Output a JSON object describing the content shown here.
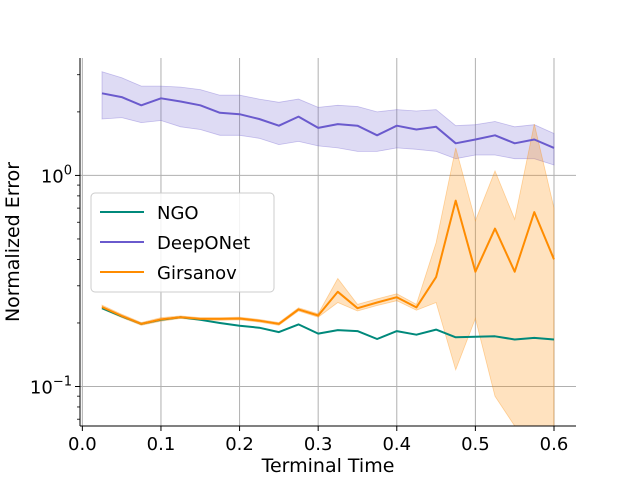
{
  "chart_data": {
    "type": "line",
    "xlabel": "Terminal Time",
    "ylabel": "Normalized Error",
    "x_scale": "linear",
    "y_scale": "log",
    "xlim": [
      -0.003,
      0.628
    ],
    "ylim": [
      0.065,
      3.6
    ],
    "x_ticks": [
      0.0,
      0.1,
      0.2,
      0.3,
      0.4,
      0.5,
      0.6
    ],
    "x_tick_labels": [
      "0.0",
      "0.1",
      "0.2",
      "0.3",
      "0.4",
      "0.5",
      "0.6"
    ],
    "y_ticks": [
      1,
      0.1
    ],
    "y_tick_labels": [
      {
        "base": "10",
        "exp": "0"
      },
      {
        "base": "10",
        "exp": "−1"
      }
    ],
    "grid": true,
    "legend_position": "center-left",
    "x": [
      0.025,
      0.05,
      0.075,
      0.1,
      0.125,
      0.15,
      0.175,
      0.2,
      0.225,
      0.25,
      0.275,
      0.3,
      0.325,
      0.35,
      0.375,
      0.4,
      0.425,
      0.45,
      0.475,
      0.5,
      0.525,
      0.55,
      0.575,
      0.6
    ],
    "series": [
      {
        "name": "NGO",
        "color": "#00897b",
        "values": [
          0.235,
          0.215,
          0.198,
          0.207,
          0.213,
          0.207,
          0.2,
          0.194,
          0.19,
          0.181,
          0.197,
          0.178,
          0.185,
          0.183,
          0.168,
          0.183,
          0.176,
          0.186,
          0.171,
          0.172,
          0.173,
          0.167,
          0.17,
          0.167
        ]
      },
      {
        "name": "DeepONet",
        "color": "#6a5acd",
        "values": [
          2.45,
          2.35,
          2.15,
          2.32,
          2.24,
          2.15,
          1.98,
          1.95,
          1.85,
          1.72,
          1.9,
          1.68,
          1.75,
          1.72,
          1.55,
          1.72,
          1.65,
          1.7,
          1.42,
          1.48,
          1.55,
          1.42,
          1.48,
          1.35
        ],
        "lower": [
          1.85,
          1.88,
          1.78,
          1.82,
          1.7,
          1.65,
          1.55,
          1.55,
          1.5,
          1.4,
          1.45,
          1.38,
          1.35,
          1.3,
          1.3,
          1.35,
          1.33,
          1.3,
          1.2,
          1.25,
          1.25,
          1.2,
          1.2,
          1.12
        ],
        "upper": [
          3.1,
          2.9,
          2.65,
          2.65,
          2.62,
          2.55,
          2.4,
          2.4,
          2.3,
          2.22,
          2.3,
          2.1,
          2.15,
          2.12,
          2.0,
          2.05,
          2.02,
          2.05,
          1.72,
          1.74,
          1.8,
          1.7,
          1.74,
          1.58
        ]
      },
      {
        "name": "Girsanov",
        "color": "#ff8c00",
        "values": [
          0.238,
          0.216,
          0.198,
          0.208,
          0.213,
          0.209,
          0.209,
          0.21,
          0.205,
          0.198,
          0.232,
          0.217,
          0.281,
          0.235,
          0.25,
          0.265,
          0.237,
          0.33,
          0.76,
          0.35,
          0.56,
          0.35,
          0.67,
          0.4
        ],
        "lower": [
          0.233,
          0.212,
          0.195,
          0.204,
          0.21,
          0.206,
          0.206,
          0.207,
          0.202,
          0.195,
          0.228,
          0.213,
          0.25,
          0.228,
          0.242,
          0.255,
          0.23,
          0.25,
          0.12,
          0.21,
          0.09,
          0.03,
          0.03,
          0.03
        ],
        "upper": [
          0.243,
          0.22,
          0.201,
          0.212,
          0.216,
          0.212,
          0.212,
          0.213,
          0.208,
          0.201,
          0.236,
          0.221,
          0.325,
          0.245,
          0.26,
          0.275,
          0.245,
          0.48,
          1.35,
          0.61,
          1.05,
          0.62,
          1.75,
          0.7
        ]
      }
    ]
  }
}
